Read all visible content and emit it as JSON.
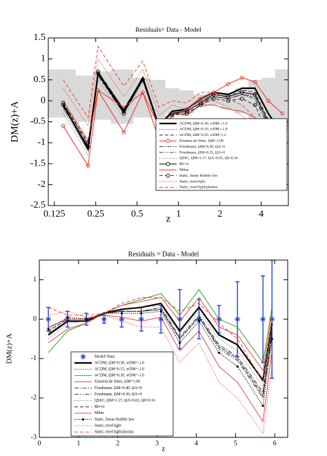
{
  "chart_data": [
    {
      "type": "line",
      "title": "Residuals= Data - Model",
      "xlabel": "z",
      "ylabel": "DM(z)+A",
      "xlog": true,
      "xlim": [
        0.113,
        6.3
      ],
      "xticks": [
        0.125,
        0.25,
        0.5,
        1,
        2,
        4
      ],
      "ylim": [
        -2.5,
        1.5
      ],
      "yticks": [
        -2.5,
        -2,
        -1.5,
        -1,
        -0.5,
        0,
        0.5,
        1,
        1.5
      ],
      "legend": "lower right",
      "x": [
        0.145,
        0.22,
        0.26,
        0.4,
        0.55,
        0.72,
        0.9,
        1.15,
        1.45,
        1.8,
        2.3,
        2.9,
        3.6,
        4.5,
        5.7
      ],
      "band": {
        "color": "#d9d9d9",
        "lower": [
          -0.4,
          -0.5,
          -0.45,
          -0.55,
          -0.4,
          -0.4,
          -0.3,
          -0.3,
          -0.15,
          -0.1,
          -0.2,
          -0.3,
          -0.5,
          -0.6,
          -0.7
        ],
        "upper": [
          0.75,
          0.6,
          0.7,
          0.75,
          0.55,
          0.5,
          0.3,
          0.25,
          0.15,
          0.15,
          0.2,
          0.3,
          0.5,
          0.55,
          0.75
        ]
      },
      "series": [
        {
          "name": "ΛCDM, ΩM=0.30, wDM=-1.0",
          "color": "#000000",
          "dash": "solid",
          "linewidth": 2.2,
          "values": [
            -0.1,
            -1.15,
            0.65,
            -0.25,
            0.55,
            -0.6,
            -0.25,
            -0.2,
            0.05,
            0.2,
            0.15,
            0.3,
            0.3,
            -0.3,
            -0.8
          ]
        },
        {
          "name": "ΛCDM, ΩM=0.19, wDM=-1.0",
          "color": "#000000",
          "dash": "dotted",
          "linewidth": 0.8,
          "values": [
            -0.2,
            -1.2,
            0.6,
            -0.3,
            0.5,
            -0.6,
            -0.3,
            -0.2,
            0.0,
            0.15,
            0.1,
            0.2,
            0.15,
            -0.5,
            -1.0
          ]
        },
        {
          "name": "wCDM, ΩM=0.20, wDM=1.2",
          "color": "#000000",
          "dash": "dashed",
          "linewidth": 0.8,
          "values": [
            -0.15,
            -1.1,
            0.6,
            -0.3,
            0.5,
            -0.6,
            -0.3,
            -0.25,
            -0.05,
            0.15,
            0.1,
            0.25,
            0.2,
            -0.45,
            -0.9
          ]
        },
        {
          "name": "Einstein-de Sitter, ΩM=1.00",
          "color": "#e8302a",
          "dash": "solid",
          "marker": "circle",
          "linewidth": 1,
          "values": [
            -0.6,
            -1.55,
            0.25,
            -0.75,
            0.2,
            -0.9,
            -0.35,
            -0.2,
            0.05,
            0.2,
            0.4,
            0.55,
            0.45,
            0.0,
            -0.3
          ]
        },
        {
          "name": "Friedmann, ΩM=0.30, ΩΛ=0",
          "color": "#000000",
          "dash": "dashdot",
          "linewidth": 0.8,
          "values": [
            -0.05,
            -1.05,
            0.7,
            -0.2,
            0.55,
            -0.6,
            -0.3,
            -0.3,
            -0.1,
            0.1,
            0.05,
            0.15,
            0.05,
            -0.6,
            -1.1
          ]
        },
        {
          "name": "Friedmann, ΩM=0.35, ΩΛ=0",
          "color": "#000000",
          "dash": "dashdotdot",
          "linewidth": 0.8,
          "values": [
            -0.05,
            -1.05,
            0.7,
            -0.2,
            0.55,
            -0.6,
            -0.3,
            -0.25,
            -0.05,
            0.1,
            0.05,
            0.15,
            0.1,
            -0.55,
            -1.05
          ]
        },
        {
          "name": "QSSC, ΩM=1.17, ΩΛ=0.01, ΩI=0.16",
          "color": "#555555",
          "dash": "dotted",
          "linewidth": 0.8,
          "values": [
            -0.3,
            -1.3,
            0.5,
            -0.4,
            0.45,
            -0.65,
            -0.3,
            -0.2,
            0.0,
            0.15,
            0.1,
            0.2,
            0.15,
            -0.5,
            -1.05
          ]
        },
        {
          "name": "Rh=ct",
          "color": "#000000",
          "dash": "solid",
          "marker": "circle",
          "linewidth": 1,
          "values": [
            -0.1,
            -1.1,
            0.65,
            -0.3,
            0.5,
            -0.6,
            -0.3,
            -0.25,
            -0.05,
            0.15,
            0.1,
            0.2,
            0.15,
            -0.5,
            -1.0
          ]
        },
        {
          "name": "Milne",
          "color": "#e8302a",
          "dash": "solid",
          "linewidth": 1,
          "values": [
            0.0,
            -0.95,
            0.25,
            -0.15,
            0.2,
            -0.6,
            -0.3,
            -0.35,
            -0.1,
            -0.1,
            -0.2,
            -0.25,
            -0.4,
            -1.1,
            -1.6
          ]
        },
        {
          "name": "Static, linear Hubble law",
          "color": "#000000",
          "dash": "dashed",
          "marker": "circle",
          "linewidth": 0.8,
          "values": [
            -0.05,
            -1.0,
            0.7,
            -0.25,
            0.5,
            -0.65,
            -0.35,
            -0.3,
            -0.1,
            0.05,
            0.0,
            0.05,
            -0.1,
            -0.8,
            -1.3
          ]
        },
        {
          "name": "Static, tired light",
          "color": "#e8302a",
          "dash": "dotted",
          "linewidth": 0.9,
          "values": [
            0.3,
            -0.6,
            1.0,
            0.1,
            0.75,
            -0.35,
            -0.1,
            -0.2,
            0.0,
            0.0,
            -0.15,
            -0.35,
            -0.7,
            -1.4,
            -2.0
          ]
        },
        {
          "name": "Static, tired light/plasma",
          "color": "#e8302a",
          "dash": "dashed",
          "linewidth": 0.9,
          "values": [
            0.5,
            -0.4,
            1.3,
            0.35,
            0.95,
            -0.15,
            0.0,
            -0.05,
            0.2,
            0.2,
            0.05,
            -0.1,
            -0.4,
            -1.3,
            -2.1
          ]
        }
      ]
    },
    {
      "type": "line",
      "title": "Residuals = Data - Model",
      "xlabel": "z",
      "ylabel": "DM(z)+A",
      "xlog": false,
      "xlim": [
        0,
        6.33
      ],
      "xticks": [
        0,
        1,
        2,
        3,
        4,
        5,
        6
      ],
      "ylim": [
        -3,
        1.5
      ],
      "yticks": [
        -3,
        -2,
        -1,
        0,
        1
      ],
      "legend": "lower left",
      "x": [
        0.23,
        0.72,
        1.2,
        1.65,
        2.1,
        2.6,
        3.1,
        3.58,
        4.07,
        4.58,
        5.05,
        5.7,
        5.93
      ],
      "series": [
        {
          "name": "Model=Data",
          "color": "#1f3fd6",
          "dash": "none",
          "marker": "star",
          "linewidth": 1.4,
          "values": [
            0,
            0,
            0,
            0,
            0,
            0,
            0,
            0,
            0,
            0,
            0,
            0,
            0
          ],
          "errors": [
            0.3,
            0.2,
            0.15,
            0.1,
            0.2,
            0.3,
            0.35,
            0.75,
            0.5,
            0.35,
            0.95,
            1.1,
            1.5
          ]
        },
        {
          "name": "ΛCDM, ΩM=0.30, wDM=-1.0",
          "color": "#000000",
          "dash": "solid",
          "linewidth": 2.2,
          "values": [
            -0.4,
            -0.05,
            -0.05,
            0.15,
            0.25,
            0.3,
            0.4,
            -0.3,
            0.3,
            -0.4,
            -0.65,
            -1.55,
            -0.1
          ]
        },
        {
          "name": "ΛCDM, ΩM=0.15, wDM=-1.0",
          "color": "#000000",
          "dash": "dotted",
          "linewidth": 0.8,
          "values": [
            -0.3,
            0.0,
            0.0,
            0.15,
            0.2,
            0.2,
            0.25,
            -0.5,
            0.05,
            -0.7,
            -1.0,
            -1.9,
            -0.3
          ]
        },
        {
          "name": "wCDM, ΩM=0.30, wDM=-1.0",
          "color": "#1a9a1a",
          "dash": "solid",
          "linewidth": 0.9,
          "values": [
            -0.85,
            -0.3,
            -0.1,
            0.15,
            0.35,
            0.5,
            0.65,
            0.1,
            0.75,
            0.0,
            -0.2,
            -1.1,
            0.3
          ]
        },
        {
          "name": "Einstein-de Sitter, ΩM=1.00",
          "color": "#e8302a",
          "dash": "solid",
          "linewidth": 0.9,
          "values": [
            -0.6,
            -0.25,
            -0.1,
            0.15,
            0.35,
            0.45,
            0.55,
            -0.05,
            0.55,
            -0.2,
            -0.4,
            -1.3,
            0.15
          ]
        },
        {
          "name": "Friedmann, ΩM=0.40, ΩΛ=0",
          "color": "#000000",
          "dash": "dashdot",
          "linewidth": 0.8,
          "values": [
            -0.4,
            -0.05,
            -0.05,
            0.15,
            0.2,
            0.2,
            0.3,
            -0.45,
            0.1,
            -0.65,
            -0.95,
            -1.85,
            -0.3
          ]
        },
        {
          "name": "Friedmann, ΩM=0.30, ΩΛ=0",
          "color": "#000000",
          "dash": "dashdotdot",
          "linewidth": 0.8,
          "values": [
            -0.35,
            -0.05,
            -0.05,
            0.15,
            0.2,
            0.2,
            0.25,
            -0.5,
            0.05,
            -0.75,
            -1.05,
            -2.0,
            -0.4
          ]
        },
        {
          "name": "QSSC, ΩM=1.17, ΩΛ=0.01, ΩI=0.16",
          "color": "#555555",
          "dash": "dotted",
          "linewidth": 0.8,
          "values": [
            -0.5,
            -0.1,
            -0.05,
            0.15,
            0.25,
            0.3,
            0.35,
            -0.35,
            0.2,
            -0.5,
            -0.8,
            -1.7,
            -0.2
          ]
        },
        {
          "name": "Rh=ct",
          "color": "#000000",
          "dash": "dashed",
          "linewidth": 0.8,
          "values": [
            -0.3,
            0.0,
            0.0,
            0.15,
            0.2,
            0.2,
            0.25,
            -0.5,
            0.05,
            -0.7,
            -1.0,
            -1.95,
            -0.35
          ]
        },
        {
          "name": "Milne",
          "color": "#e8302a",
          "dash": "solid",
          "linewidth": 0.9,
          "values": [
            -0.2,
            0.0,
            0.0,
            0.1,
            0.05,
            -0.05,
            0.05,
            -0.8,
            -0.3,
            -1.2,
            -1.6,
            -2.6,
            -0.8
          ]
        },
        {
          "name": "Static, linear Hubble law",
          "color": "#000000",
          "dash": "dotted",
          "marker": "dot",
          "linewidth": 1.2,
          "values": [
            -0.25,
            0.05,
            0.0,
            0.15,
            0.15,
            0.15,
            0.2,
            -0.6,
            -0.05,
            -0.85,
            -1.2,
            -2.2,
            -0.5
          ]
        },
        {
          "name": "Static, tired light",
          "color": "#e8302a",
          "dash": "dotted",
          "linewidth": 0.9,
          "values": [
            0.1,
            0.2,
            0.05,
            0.1,
            -0.05,
            -0.2,
            -0.2,
            -1.1,
            -0.6,
            -1.6,
            -2.0,
            -2.9,
            -1.2
          ]
        },
        {
          "name": "Static, tired light/plasma",
          "color": "#e8302a",
          "dash": "dashed",
          "linewidth": 0.9,
          "values": [
            0.3,
            0.1,
            0.1,
            0.15,
            0.4,
            0.55,
            0.55,
            0.2,
            0.4,
            -0.1,
            -0.5,
            -1.6,
            0.0
          ]
        }
      ]
    }
  ]
}
